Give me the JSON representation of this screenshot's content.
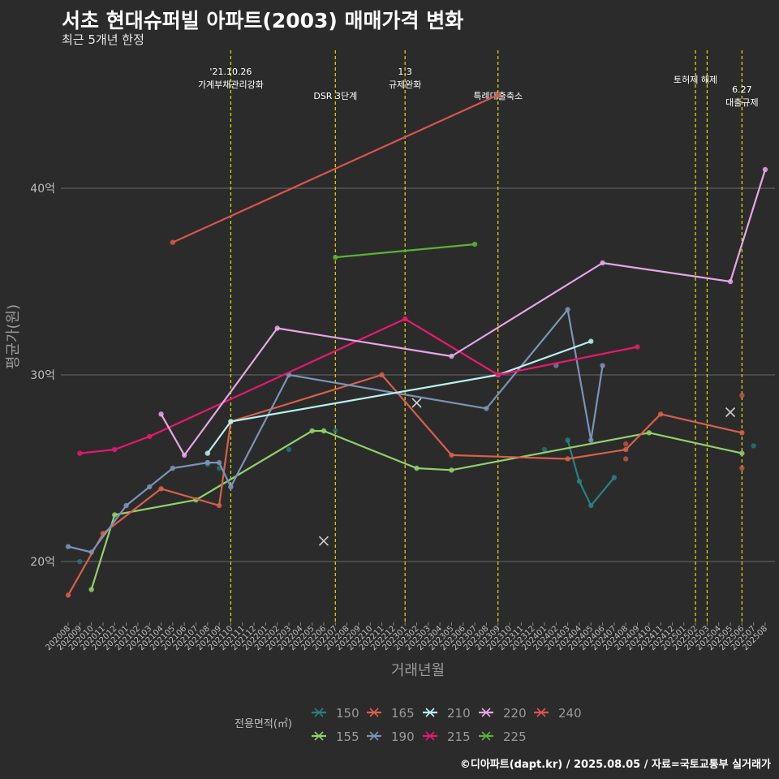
{
  "title": "서초 현대슈퍼빌 아파트(2003) 매매가격 변화",
  "subtitle": "최근 5개년 한정",
  "caption": "©디아파트(dapt.kr) / 2025.08.05 / 자료=국토교통부 실거래가",
  "chart_data": {
    "type": "line",
    "xlabel": "거래년월",
    "ylabel": "평균가(원)",
    "ylim": [
      17,
      47
    ],
    "y_ticks": [
      {
        "v": 20,
        "label": "20억"
      },
      {
        "v": 30,
        "label": "30억"
      },
      {
        "v": 40,
        "label": "40억"
      }
    ],
    "x_categories": [
      "202008",
      "202009",
      "202010",
      "202011",
      "202012",
      "202101",
      "202102",
      "202103",
      "202104",
      "202105",
      "202106",
      "202107",
      "202108",
      "202109",
      "202110",
      "202111",
      "202112",
      "202201",
      "202202",
      "202203",
      "202204",
      "202205",
      "202206",
      "202207",
      "202208",
      "202209",
      "202210",
      "202211",
      "202212",
      "202301",
      "202302",
      "202303",
      "202304",
      "202305",
      "202306",
      "202307",
      "202308",
      "202309",
      "202310",
      "202311",
      "202312",
      "202401",
      "202402",
      "202403",
      "202404",
      "202405",
      "202406",
      "202407",
      "202408",
      "202409",
      "202410",
      "202411",
      "202412",
      "202501",
      "202502",
      "202503",
      "202504",
      "202505",
      "202506",
      "202507",
      "202508"
    ],
    "events": [
      {
        "month": "202110",
        "lines": [
          "'21.10.26",
          "가계부채관리강화"
        ],
        "row": 0
      },
      {
        "month": "202207",
        "lines": [
          "DSR 3단계"
        ],
        "row": 2
      },
      {
        "month": "202301",
        "lines": [
          "1.3",
          "규제완화"
        ],
        "row": 0
      },
      {
        "month": "202309",
        "lines": [
          "특례대출축소"
        ],
        "row": 2
      },
      {
        "month": "202502",
        "lines": [
          "토허제 해제"
        ],
        "row": 1
      },
      {
        "month": "202503",
        "lines": [],
        "row": 1
      },
      {
        "month": "202506",
        "lines": [
          "6.27",
          "대출규제"
        ],
        "row": 3
      }
    ],
    "legend_title": "전용면적(㎡)",
    "series": [
      {
        "name": "150",
        "color": "#2a8080",
        "line": [
          [
            "202403",
            26.5
          ],
          [
            "202404",
            24.3
          ],
          [
            "202405",
            23.0
          ],
          [
            "202407",
            24.5
          ]
        ],
        "points": [
          [
            "202009",
            20.0
          ],
          [
            "202108",
            25.2
          ],
          [
            "202109",
            25.0
          ],
          [
            "202110",
            24.0
          ],
          [
            "202203",
            26.0
          ],
          [
            "202207",
            27.0
          ],
          [
            "202401",
            26.0
          ],
          [
            "202507",
            26.2
          ]
        ],
        "crosses": []
      },
      {
        "name": "155",
        "color": "#8fd16a",
        "line": [
          [
            "202010",
            18.5
          ],
          [
            "202012",
            22.5
          ],
          [
            "202107",
            23.3
          ],
          [
            "202205",
            27.0
          ],
          [
            "202206",
            27.0
          ],
          [
            "202302",
            25.0
          ],
          [
            "202305",
            24.9
          ],
          [
            "202410",
            26.9
          ],
          [
            "202506",
            25.8
          ]
        ],
        "points": [],
        "crosses": []
      },
      {
        "name": "165",
        "color": "#d95f4a",
        "line": [
          [
            "202008",
            18.2
          ],
          [
            "202011",
            21.5
          ],
          [
            "202104",
            23.9
          ],
          [
            "202109",
            23.0
          ],
          [
            "202110",
            27.5
          ],
          [
            "202211",
            30.0
          ],
          [
            "202305",
            25.7
          ],
          [
            "202403",
            25.5
          ],
          [
            "202408",
            26.0
          ],
          [
            "202411",
            27.9
          ],
          [
            "202506",
            26.9
          ]
        ],
        "points": [
          [
            "202408",
            26.3
          ],
          [
            "202408",
            25.5
          ],
          [
            "202506",
            25.0
          ],
          [
            "202506",
            28.9
          ]
        ],
        "crosses": [
          [
            "202206",
            21.1
          ]
        ]
      },
      {
        "name": "190",
        "color": "#7b93b8",
        "line": [
          [
            "202008",
            20.8
          ],
          [
            "202010",
            20.5
          ],
          [
            "202101",
            23.0
          ],
          [
            "202103",
            24.0
          ],
          [
            "202105",
            25.0
          ],
          [
            "202108",
            25.3
          ],
          [
            "202109",
            25.3
          ],
          [
            "202110",
            24.0
          ],
          [
            "202203",
            30.0
          ],
          [
            "202308",
            28.2
          ],
          [
            "202403",
            33.5
          ],
          [
            "202405",
            26.5
          ],
          [
            "202406",
            30.5
          ]
        ],
        "points": [
          [
            "202108",
            25.3
          ],
          [
            "202402",
            30.5
          ]
        ],
        "crosses": [
          [
            "202505",
            28.0
          ]
        ]
      },
      {
        "name": "210",
        "color": "#b8f0f0",
        "line": [
          [
            "202108",
            25.8
          ],
          [
            "202110",
            27.5
          ],
          [
            "202309",
            30.0
          ],
          [
            "202405",
            31.8
          ]
        ],
        "points": [],
        "crosses": []
      },
      {
        "name": "215",
        "color": "#e8196e",
        "line": [
          [
            "202009",
            25.8
          ],
          [
            "202012",
            26.0
          ],
          [
            "202103",
            26.7
          ],
          [
            "202301",
            33.0
          ],
          [
            "202309",
            30.0
          ],
          [
            "202409",
            31.5
          ]
        ],
        "points": [],
        "crosses": [
          [
            "202302",
            28.5
          ]
        ]
      },
      {
        "name": "220",
        "color": "#e6a6e6",
        "line": [
          [
            "202104",
            27.9
          ],
          [
            "202106",
            25.7
          ],
          [
            "202202",
            32.5
          ],
          [
            "202305",
            31.0
          ],
          [
            "202406",
            36.0
          ],
          [
            "202505",
            35.0
          ],
          [
            "202508",
            41.0
          ]
        ],
        "points": [],
        "crosses": []
      },
      {
        "name": "225",
        "color": "#5ab334",
        "line": [
          [
            "202207",
            36.3
          ],
          [
            "202307",
            37.0
          ]
        ],
        "points": [],
        "crosses": []
      },
      {
        "name": "240",
        "color": "#d9554f",
        "line": [
          [
            "202105",
            37.1
          ],
          [
            "202309",
            45.0
          ]
        ],
        "points": [],
        "crosses": []
      }
    ]
  }
}
